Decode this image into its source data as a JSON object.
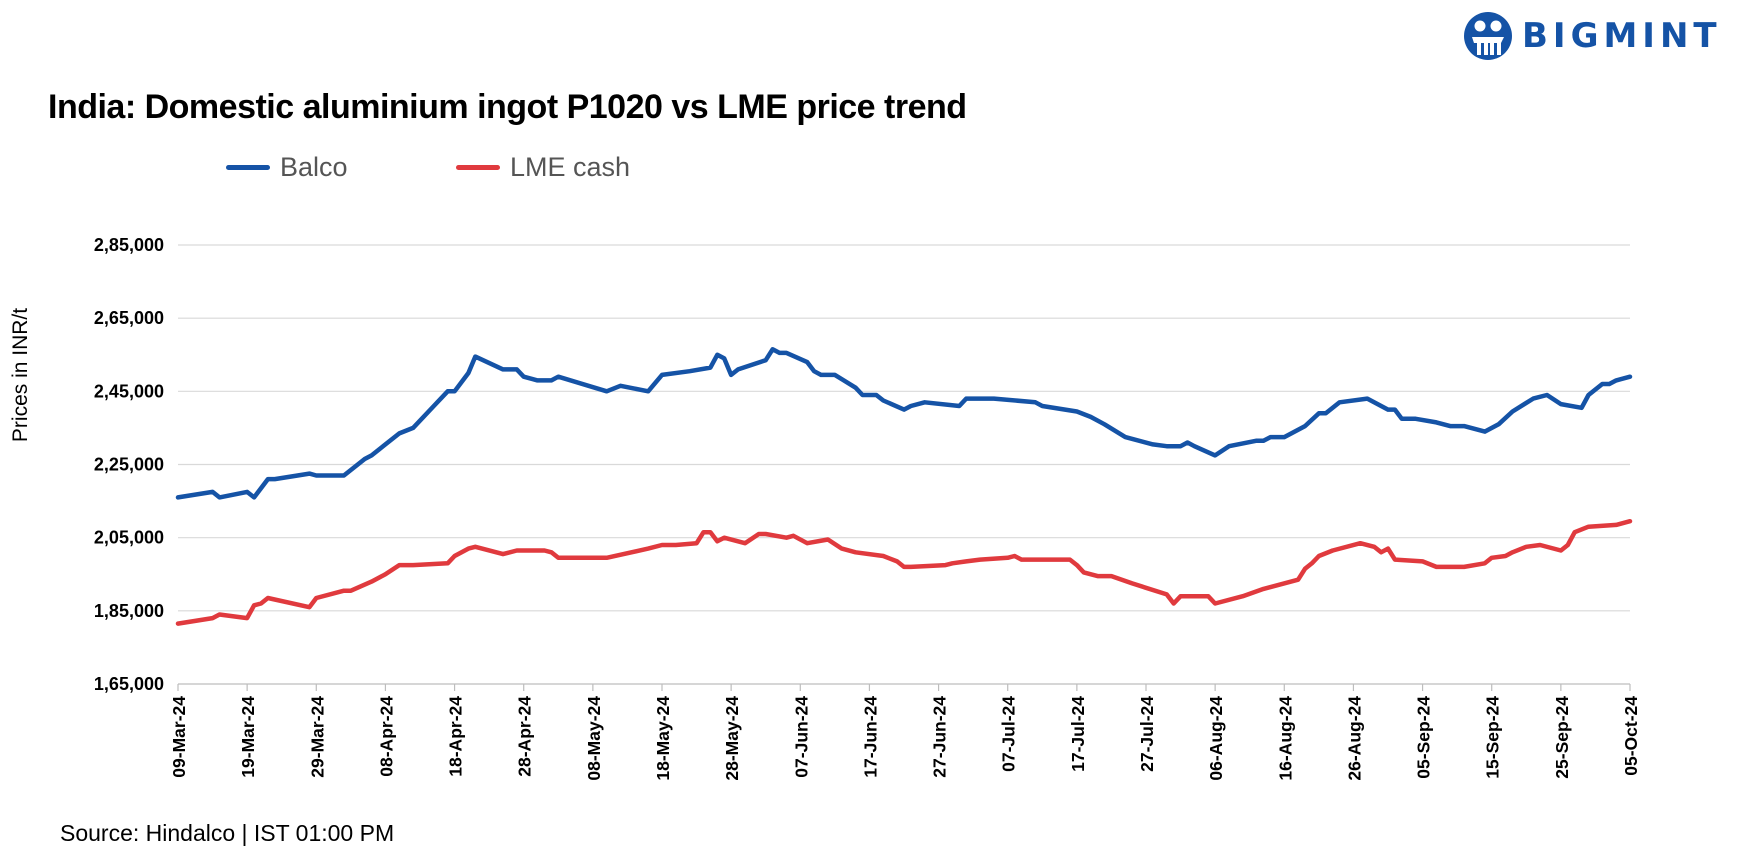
{
  "brand": {
    "name": "BIGMINT",
    "color": "#1553a6"
  },
  "footer": {
    "source": "Source: Hindalco | IST 01:00 PM"
  },
  "chart_data": {
    "type": "line",
    "title": "India: Domestic aluminium ingot P1020 vs LME price trend",
    "ylabel": "Prices in INR/t",
    "xlabel": "",
    "ylim": [
      165000,
      285000
    ],
    "yticks": [
      165000,
      185000,
      205000,
      225000,
      245000,
      265000,
      285000
    ],
    "ytick_labels": [
      "1,65,000",
      "1,85,000",
      "2,05,000",
      "2,25,000",
      "2,45,000",
      "2,65,000",
      "2,85,000"
    ],
    "xlim": [
      "2024-03-09",
      "2024-10-05"
    ],
    "xtick_dates": [
      "2024-03-09",
      "2024-03-19",
      "2024-03-29",
      "2024-04-08",
      "2024-04-18",
      "2024-04-28",
      "2024-05-08",
      "2024-05-18",
      "2024-05-28",
      "2024-06-07",
      "2024-06-17",
      "2024-06-27",
      "2024-07-07",
      "2024-07-17",
      "2024-07-27",
      "2024-08-06",
      "2024-08-16",
      "2024-08-26",
      "2024-09-05",
      "2024-09-15",
      "2024-09-25",
      "2024-10-05"
    ],
    "xtick_labels": [
      "09-Mar-24",
      "19-Mar-24",
      "29-Mar-24",
      "08-Apr-24",
      "18-Apr-24",
      "28-Apr-24",
      "08-May-24",
      "18-May-24",
      "28-May-24",
      "07-Jun-24",
      "17-Jun-24",
      "27-Jun-24",
      "07-Jul-24",
      "17-Jul-24",
      "27-Jul-24",
      "06-Aug-24",
      "16-Aug-24",
      "26-Aug-24",
      "05-Sep-24",
      "15-Sep-24",
      "25-Sep-24",
      "05-Oct-24"
    ],
    "grid": true,
    "legend": "top-left",
    "series": [
      {
        "name": "Balco",
        "color": "#1553a6",
        "points": [
          [
            "2024-03-09",
            216000
          ],
          [
            "2024-03-14",
            217500
          ],
          [
            "2024-03-15",
            216000
          ],
          [
            "2024-03-19",
            217500
          ],
          [
            "2024-03-20",
            216000
          ],
          [
            "2024-03-22",
            221000
          ],
          [
            "2024-03-23",
            221000
          ],
          [
            "2024-03-28",
            222500
          ],
          [
            "2024-03-29",
            222000
          ],
          [
            "2024-04-02",
            222000
          ],
          [
            "2024-04-05",
            226500
          ],
          [
            "2024-04-06",
            227500
          ],
          [
            "2024-04-08",
            230500
          ],
          [
            "2024-04-10",
            233500
          ],
          [
            "2024-04-12",
            235000
          ],
          [
            "2024-04-15",
            241000
          ],
          [
            "2024-04-17",
            245000
          ],
          [
            "2024-04-18",
            245000
          ],
          [
            "2024-04-20",
            250000
          ],
          [
            "2024-04-21",
            254500
          ],
          [
            "2024-04-25",
            251000
          ],
          [
            "2024-04-27",
            251000
          ],
          [
            "2024-04-28",
            249000
          ],
          [
            "2024-04-30",
            248000
          ],
          [
            "2024-05-02",
            248000
          ],
          [
            "2024-05-03",
            249000
          ],
          [
            "2024-05-10",
            245000
          ],
          [
            "2024-05-12",
            246500
          ],
          [
            "2024-05-16",
            245000
          ],
          [
            "2024-05-18",
            249500
          ],
          [
            "2024-05-22",
            250500
          ],
          [
            "2024-05-25",
            251500
          ],
          [
            "2024-05-26",
            255000
          ],
          [
            "2024-05-27",
            254000
          ],
          [
            "2024-05-28",
            249500
          ],
          [
            "2024-05-29",
            251000
          ],
          [
            "2024-06-02",
            253500
          ],
          [
            "2024-06-03",
            256500
          ],
          [
            "2024-06-04",
            255500
          ],
          [
            "2024-06-05",
            255500
          ],
          [
            "2024-06-08",
            253000
          ],
          [
            "2024-06-09",
            250500
          ],
          [
            "2024-06-10",
            249500
          ],
          [
            "2024-06-12",
            249500
          ],
          [
            "2024-06-15",
            246000
          ],
          [
            "2024-06-16",
            244000
          ],
          [
            "2024-06-18",
            244000
          ],
          [
            "2024-06-19",
            242500
          ],
          [
            "2024-06-22",
            240000
          ],
          [
            "2024-06-23",
            241000
          ],
          [
            "2024-06-25",
            242000
          ],
          [
            "2024-06-30",
            241000
          ],
          [
            "2024-07-01",
            243000
          ],
          [
            "2024-07-05",
            243000
          ],
          [
            "2024-07-11",
            242000
          ],
          [
            "2024-07-12",
            241000
          ],
          [
            "2024-07-17",
            239500
          ],
          [
            "2024-07-19",
            238000
          ],
          [
            "2024-07-21",
            236000
          ],
          [
            "2024-07-24",
            232500
          ],
          [
            "2024-07-28",
            230500
          ],
          [
            "2024-07-30",
            230000
          ],
          [
            "2024-08-01",
            230000
          ],
          [
            "2024-08-02",
            231000
          ],
          [
            "2024-08-03",
            230000
          ],
          [
            "2024-08-06",
            227500
          ],
          [
            "2024-08-08",
            230000
          ],
          [
            "2024-08-12",
            231500
          ],
          [
            "2024-08-13",
            231500
          ],
          [
            "2024-08-14",
            232500
          ],
          [
            "2024-08-16",
            232500
          ],
          [
            "2024-08-19",
            235500
          ],
          [
            "2024-08-21",
            239000
          ],
          [
            "2024-08-22",
            239000
          ],
          [
            "2024-08-23",
            240500
          ],
          [
            "2024-08-24",
            242000
          ],
          [
            "2024-08-28",
            243000
          ],
          [
            "2024-08-31",
            240000
          ],
          [
            "2024-09-01",
            240000
          ],
          [
            "2024-09-02",
            237500
          ],
          [
            "2024-09-04",
            237500
          ],
          [
            "2024-09-07",
            236500
          ],
          [
            "2024-09-09",
            235500
          ],
          [
            "2024-09-11",
            235500
          ],
          [
            "2024-09-14",
            234000
          ],
          [
            "2024-09-16",
            236000
          ],
          [
            "2024-09-18",
            239500
          ],
          [
            "2024-09-21",
            243000
          ],
          [
            "2024-09-23",
            244000
          ],
          [
            "2024-09-25",
            241500
          ],
          [
            "2024-09-28",
            240500
          ],
          [
            "2024-09-29",
            244000
          ],
          [
            "2024-10-01",
            247000
          ],
          [
            "2024-10-02",
            247000
          ],
          [
            "2024-10-03",
            248000
          ],
          [
            "2024-10-05",
            249000
          ]
        ]
      },
      {
        "name": "LME cash",
        "color": "#e03a3e",
        "points": [
          [
            "2024-03-09",
            181500
          ],
          [
            "2024-03-14",
            183000
          ],
          [
            "2024-03-15",
            184000
          ],
          [
            "2024-03-19",
            183000
          ],
          [
            "2024-03-20",
            186500
          ],
          [
            "2024-03-21",
            187000
          ],
          [
            "2024-03-22",
            188500
          ],
          [
            "2024-03-28",
            186000
          ],
          [
            "2024-03-29",
            188500
          ],
          [
            "2024-04-02",
            190500
          ],
          [
            "2024-04-03",
            190500
          ],
          [
            "2024-04-06",
            193000
          ],
          [
            "2024-04-08",
            195000
          ],
          [
            "2024-04-10",
            197500
          ],
          [
            "2024-04-12",
            197500
          ],
          [
            "2024-04-17",
            198000
          ],
          [
            "2024-04-18",
            200000
          ],
          [
            "2024-04-20",
            202000
          ],
          [
            "2024-04-21",
            202500
          ],
          [
            "2024-04-25",
            200500
          ],
          [
            "2024-04-27",
            201500
          ],
          [
            "2024-05-01",
            201500
          ],
          [
            "2024-05-02",
            201000
          ],
          [
            "2024-05-03",
            199500
          ],
          [
            "2024-05-10",
            199500
          ],
          [
            "2024-05-16",
            202000
          ],
          [
            "2024-05-18",
            203000
          ],
          [
            "2024-05-20",
            203000
          ],
          [
            "2024-05-23",
            203500
          ],
          [
            "2024-05-24",
            206500
          ],
          [
            "2024-05-25",
            206500
          ],
          [
            "2024-05-26",
            204000
          ],
          [
            "2024-05-27",
            205000
          ],
          [
            "2024-05-30",
            203500
          ],
          [
            "2024-06-01",
            206000
          ],
          [
            "2024-06-02",
            206000
          ],
          [
            "2024-06-05",
            205000
          ],
          [
            "2024-06-06",
            205500
          ],
          [
            "2024-06-08",
            203500
          ],
          [
            "2024-06-11",
            204500
          ],
          [
            "2024-06-13",
            202000
          ],
          [
            "2024-06-15",
            201000
          ],
          [
            "2024-06-19",
            200000
          ],
          [
            "2024-06-21",
            198500
          ],
          [
            "2024-06-22",
            197000
          ],
          [
            "2024-06-23",
            197000
          ],
          [
            "2024-06-28",
            197500
          ],
          [
            "2024-06-29",
            198000
          ],
          [
            "2024-07-01",
            198500
          ],
          [
            "2024-07-03",
            199000
          ],
          [
            "2024-07-07",
            199500
          ],
          [
            "2024-07-08",
            200000
          ],
          [
            "2024-07-09",
            199000
          ],
          [
            "2024-07-16",
            199000
          ],
          [
            "2024-07-17",
            197500
          ],
          [
            "2024-07-18",
            195500
          ],
          [
            "2024-07-20",
            194500
          ],
          [
            "2024-07-22",
            194500
          ],
          [
            "2024-07-25",
            192500
          ],
          [
            "2024-07-30",
            189500
          ],
          [
            "2024-07-31",
            187000
          ],
          [
            "2024-08-01",
            189000
          ],
          [
            "2024-08-02",
            189000
          ],
          [
            "2024-08-05",
            189000
          ],
          [
            "2024-08-06",
            187000
          ],
          [
            "2024-08-10",
            189000
          ],
          [
            "2024-08-13",
            191000
          ],
          [
            "2024-08-14",
            191500
          ],
          [
            "2024-08-18",
            193500
          ],
          [
            "2024-08-19",
            196500
          ],
          [
            "2024-08-20",
            198000
          ],
          [
            "2024-08-21",
            200000
          ],
          [
            "2024-08-23",
            201500
          ],
          [
            "2024-08-27",
            203500
          ],
          [
            "2024-08-29",
            202500
          ],
          [
            "2024-08-30",
            201000
          ],
          [
            "2024-08-31",
            202000
          ],
          [
            "2024-09-01",
            199000
          ],
          [
            "2024-09-05",
            198500
          ],
          [
            "2024-09-07",
            197000
          ],
          [
            "2024-09-11",
            197000
          ],
          [
            "2024-09-14",
            198000
          ],
          [
            "2024-09-15",
            199500
          ],
          [
            "2024-09-17",
            200000
          ],
          [
            "2024-09-18",
            201000
          ],
          [
            "2024-09-20",
            202500
          ],
          [
            "2024-09-22",
            203000
          ],
          [
            "2024-09-25",
            201500
          ],
          [
            "2024-09-26",
            203000
          ],
          [
            "2024-09-27",
            206500
          ],
          [
            "2024-09-29",
            208000
          ],
          [
            "2024-10-03",
            208500
          ],
          [
            "2024-10-05",
            209500
          ]
        ]
      }
    ]
  }
}
